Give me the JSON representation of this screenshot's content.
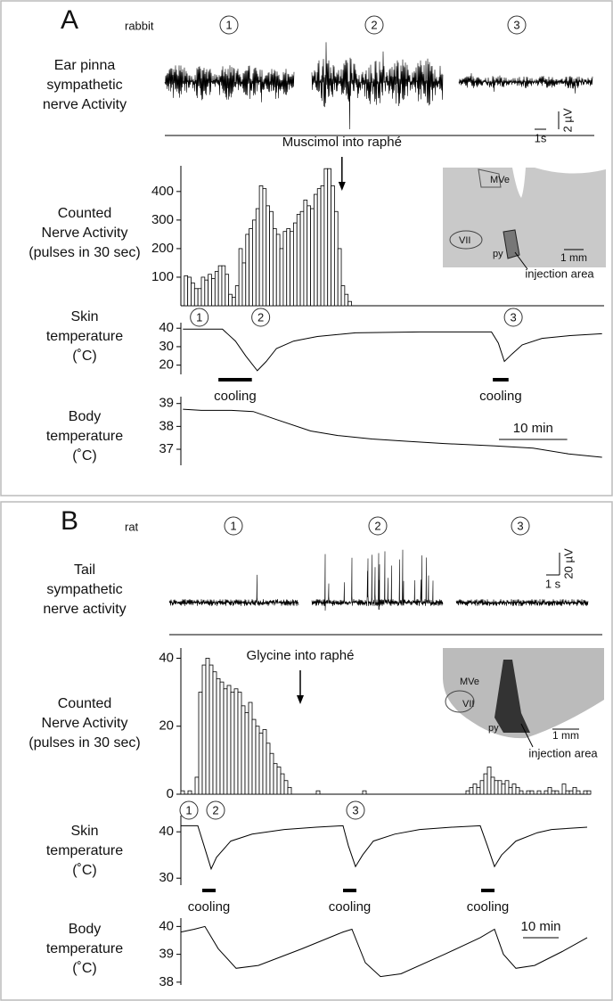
{
  "panels": [
    {
      "letter": "A",
      "species": "rabbit",
      "nerve_label": [
        "Ear pinna",
        "sympathetic",
        "nerve Activity"
      ],
      "markers": [
        "1",
        "2",
        "3"
      ],
      "scale_time": "1s",
      "scale_amp": "2 µV",
      "inset": {
        "labels": [
          "MVe",
          "VII",
          "py"
        ],
        "scale": "1 mm",
        "note": "injection area"
      }
    },
    {
      "letter": "B",
      "species": "rat",
      "nerve_label": [
        "Tail",
        "sympathetic",
        "nerve activity"
      ],
      "markers": [
        "1",
        "2",
        "3"
      ],
      "scale_time": "1 s",
      "scale_amp": "20 µV",
      "inset": {
        "labels": [
          "MVe",
          "VII",
          "py"
        ],
        "scale": "1 mm",
        "note": "injection area"
      }
    }
  ],
  "chart_data": [
    {
      "type": "histogram",
      "ylabel": [
        "Counted",
        "Nerve Activity",
        "(pulses in 30 sec)"
      ],
      "xlim": [
        0,
        62
      ],
      "ylim": [
        0,
        490
      ],
      "yticks": [
        100,
        200,
        300,
        400
      ],
      "bins": [
        0.5,
        1,
        1.5,
        2,
        2.5,
        3,
        3.5,
        4,
        4.5,
        5,
        5.5,
        6,
        6.5,
        7,
        7.5,
        8,
        8.5,
        9,
        9.5,
        10,
        10.5,
        11,
        11.5,
        12,
        12.5,
        13,
        13.5,
        14,
        14.5,
        15,
        15.5,
        16,
        16.5,
        17,
        17.5,
        18,
        18.5,
        19,
        19.5,
        20,
        20.5,
        21,
        21.5,
        22,
        22.5,
        23,
        23.5,
        24,
        24.5,
        25
      ],
      "values": [
        105,
        100,
        80,
        60,
        60,
        100,
        90,
        110,
        95,
        120,
        140,
        140,
        110,
        40,
        30,
        70,
        200,
        150,
        250,
        270,
        300,
        340,
        420,
        410,
        350,
        330,
        270,
        250,
        200,
        260,
        270,
        260,
        290,
        320,
        330,
        370,
        350,
        340,
        390,
        410,
        420,
        480,
        480,
        420,
        330,
        200,
        70,
        40,
        15
      ],
      "annotation": {
        "text": "Muscimol into raphé",
        "x": 23.6
      }
    },
    {
      "type": "line",
      "ylabel": [
        "Skin",
        "temperature",
        "(˚C)"
      ],
      "xlim": [
        0,
        62
      ],
      "ylim": [
        15,
        43
      ],
      "yticks": [
        20,
        30,
        40
      ],
      "x": [
        0.3,
        6.1,
        8,
        9.5,
        11.2,
        12.5,
        14,
        16.5,
        20,
        25.6,
        35,
        45.5,
        46.5,
        47.4,
        48.5,
        50,
        52.9,
        57,
        61.7
      ],
      "values": [
        39.5,
        39.5,
        33,
        25,
        17,
        22,
        29,
        33,
        35.5,
        37.5,
        38,
        38,
        32,
        22,
        26,
        31,
        34.5,
        36,
        37
      ],
      "markers": [
        {
          "label": "1",
          "x": 2.7
        },
        {
          "label": "2",
          "x": 11.7
        },
        {
          "label": "3",
          "x": 48.7
        }
      ],
      "cooling": [
        {
          "label": "cooling",
          "start": 5.5,
          "end": 10.4
        },
        {
          "label": "cooling",
          "start": 45.7,
          "end": 48
        }
      ]
    },
    {
      "type": "line",
      "ylabel": [
        "Body",
        "temperature",
        "(˚C)"
      ],
      "xlim": [
        0,
        62
      ],
      "ylim": [
        36.3,
        39.3
      ],
      "yticks": [
        37,
        38,
        39
      ],
      "x": [
        0.3,
        3,
        7.4,
        10.6,
        14,
        19,
        23,
        28,
        33,
        38.6,
        46,
        51.6,
        56.8,
        61.7
      ],
      "values": [
        38.75,
        38.7,
        38.7,
        38.65,
        38.3,
        37.8,
        37.6,
        37.45,
        37.35,
        37.25,
        37.15,
        37.05,
        36.8,
        36.65
      ],
      "scale_bar": {
        "label": "10 min",
        "length": 10
      }
    },
    {
      "type": "histogram",
      "ylabel": [
        "Counted",
        "Nerve Activity",
        "(pulses in 30 sec)"
      ],
      "xlim": [
        0,
        115
      ],
      "ylim": [
        0,
        43
      ],
      "yticks": [
        0,
        20,
        40
      ],
      "bins": [
        0,
        1,
        2,
        3,
        4,
        5,
        6,
        7,
        8,
        9,
        10,
        11,
        12,
        13,
        14,
        15,
        16,
        17,
        18,
        19,
        20,
        21,
        22,
        23,
        24,
        25,
        26,
        27,
        28,
        29,
        30,
        31,
        32,
        33,
        34,
        35,
        36,
        37,
        38,
        39,
        40,
        41,
        42,
        43,
        44,
        45,
        46,
        47,
        48,
        49,
        50,
        51,
        52,
        53,
        54,
        55,
        56,
        57,
        58,
        59,
        60,
        61,
        62,
        63,
        64,
        65,
        66,
        67,
        68,
        69,
        70,
        71,
        72,
        73,
        74,
        75,
        76,
        77,
        78,
        79,
        80,
        81,
        82,
        83,
        84,
        85,
        86,
        87,
        88,
        89,
        90,
        91,
        92,
        93,
        94,
        95,
        96,
        97,
        98,
        99,
        100,
        101,
        102,
        103,
        104,
        105,
        106,
        107,
        108,
        109,
        110,
        111,
        112,
        113,
        114,
        115
      ],
      "values": [
        1,
        0,
        1,
        0,
        5,
        30,
        38,
        40,
        38,
        36,
        34,
        33,
        31,
        32,
        30,
        31,
        30,
        26,
        24,
        27,
        22,
        20,
        18,
        19,
        15,
        12,
        9,
        8,
        6,
        4,
        2,
        0,
        0,
        0,
        0,
        0,
        0,
        0,
        1,
        0,
        0,
        0,
        0,
        0,
        0,
        0,
        0,
        0,
        0,
        0,
        0,
        1,
        0,
        0,
        0,
        0,
        0,
        0,
        0,
        0,
        0,
        0,
        0,
        0,
        0,
        0,
        0,
        0,
        0,
        0,
        0,
        0,
        0,
        0,
        0,
        0,
        0,
        0,
        0,
        0,
        1,
        2,
        3,
        2,
        4,
        6,
        8,
        5,
        4,
        4,
        3,
        4,
        2,
        3,
        2,
        1,
        0,
        1,
        1,
        0,
        1,
        0,
        1,
        2,
        1,
        1,
        0,
        3,
        1,
        1,
        2,
        1,
        0,
        1,
        1
      ],
      "annotation": {
        "text": "Glycine into raphé",
        "x": 33.5
      }
    },
    {
      "type": "line",
      "ylabel": [
        "Skin",
        "temperature",
        "(˚C)"
      ],
      "xlim": [
        0,
        115
      ],
      "ylim": [
        28.5,
        43.5
      ],
      "yticks": [
        30,
        40
      ],
      "x": [
        0,
        4.75,
        6.5,
        8.5,
        10,
        14,
        20,
        29,
        38,
        45.5,
        47,
        49,
        51,
        54,
        60,
        67,
        76,
        84,
        86,
        88,
        90,
        94,
        100,
        104,
        114
      ],
      "values": [
        41.3,
        41.3,
        37,
        32,
        34.5,
        38,
        39.5,
        40.5,
        41,
        41.3,
        37,
        32.5,
        35,
        38,
        39.5,
        40.5,
        41,
        41.3,
        37,
        32.5,
        35,
        38,
        39.8,
        40.5,
        41
      ],
      "markers": [
        {
          "label": "1",
          "x": 2.25
        },
        {
          "label": "2",
          "x": 9.75
        },
        {
          "label": "3",
          "x": 49
        }
      ],
      "cooling": [
        {
          "label": "cooling",
          "start": 6,
          "end": 9.75
        },
        {
          "label": "cooling",
          "start": 45.5,
          "end": 49.25
        },
        {
          "label": "cooling",
          "start": 84.25,
          "end": 88
        }
      ]
    },
    {
      "type": "line",
      "ylabel": [
        "Body",
        "temperature",
        "(˚C)"
      ],
      "xlim": [
        0,
        115
      ],
      "ylim": [
        37.9,
        40.3
      ],
      "yticks": [
        38,
        39,
        40
      ],
      "x": [
        0,
        3.75,
        6.75,
        10.5,
        15.5,
        21.75,
        34,
        45.5,
        48,
        51.75,
        56,
        61.75,
        74,
        84,
        88,
        90.5,
        94,
        99.25,
        107,
        114
      ],
      "values": [
        39.8,
        39.9,
        40,
        39.2,
        38.5,
        38.6,
        39.2,
        39.8,
        39.9,
        38.7,
        38.2,
        38.3,
        39,
        39.6,
        39.9,
        39,
        38.5,
        38.6,
        39.1,
        39.6
      ],
      "scale_bar": {
        "label": "10 min",
        "length": 10
      }
    }
  ]
}
